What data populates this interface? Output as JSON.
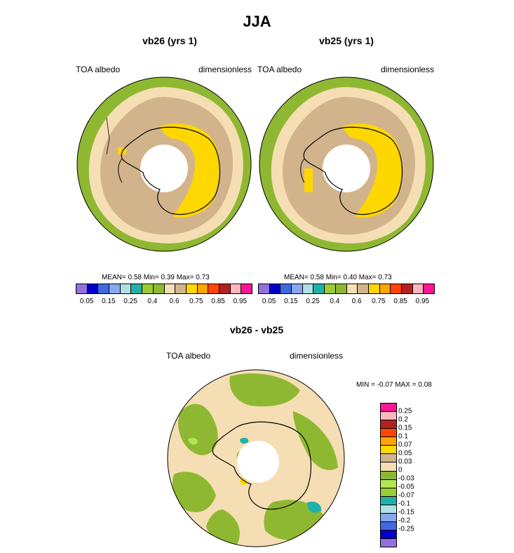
{
  "figure": {
    "season": "JJA",
    "units": "dimensionless",
    "variable": "TOA albedo"
  },
  "panel_left": {
    "title": "vb26 (yrs 1)",
    "variable": "TOA albedo",
    "units": "dimensionless",
    "stats": "MEAN=   0.58  Min=   0.39  Max=   0.73"
  },
  "panel_right": {
    "title": "vb25 (yrs 1)",
    "variable": "TOA albedo",
    "units": "dimensionless",
    "stats": "MEAN=   0.58  Min=   0.40  Max=   0.73"
  },
  "panel_diff": {
    "title": "vb26 - vb25",
    "variable": "TOA albedo",
    "units": "dimensionless",
    "stats": "MIN =  -0.07 MAX =   0.08"
  },
  "colorbar_abs": {
    "colors": [
      "#9370db",
      "#0000cd",
      "#4169e1",
      "#87a8ef",
      "#b0e0e6",
      "#20b2aa",
      "#9acd32",
      "#8fb832",
      "#f5deb3",
      "#d2b48c",
      "#ffd700",
      "#ffa500",
      "#ff4500",
      "#b22222",
      "#ffb6c1",
      "#ff1493"
    ],
    "labels": [
      "0.05",
      "0.15",
      "0.25",
      "0.4",
      "0.6",
      "0.75",
      "0.85",
      "0.95"
    ]
  },
  "colorbar_diff": {
    "colors": [
      "#ff1493",
      "#ffb6c1",
      "#b22222",
      "#ff4500",
      "#ffa500",
      "#ffd700",
      "#d2b48c",
      "#f5deb3",
      "#8fb832",
      "#b3e655",
      "#9acd32",
      "#20b2aa",
      "#b0e0e6",
      "#87a8ef",
      "#4169e1",
      "#0000cd",
      "#9370db"
    ],
    "labels": [
      "0.25",
      "0.2",
      "0.15",
      "0.1",
      "0.07",
      "0.05",
      "0.03",
      "0",
      "-0.03",
      "-0.05",
      "-0.07",
      "-0.1",
      "-0.15",
      "-0.2",
      "-0.25"
    ]
  }
}
